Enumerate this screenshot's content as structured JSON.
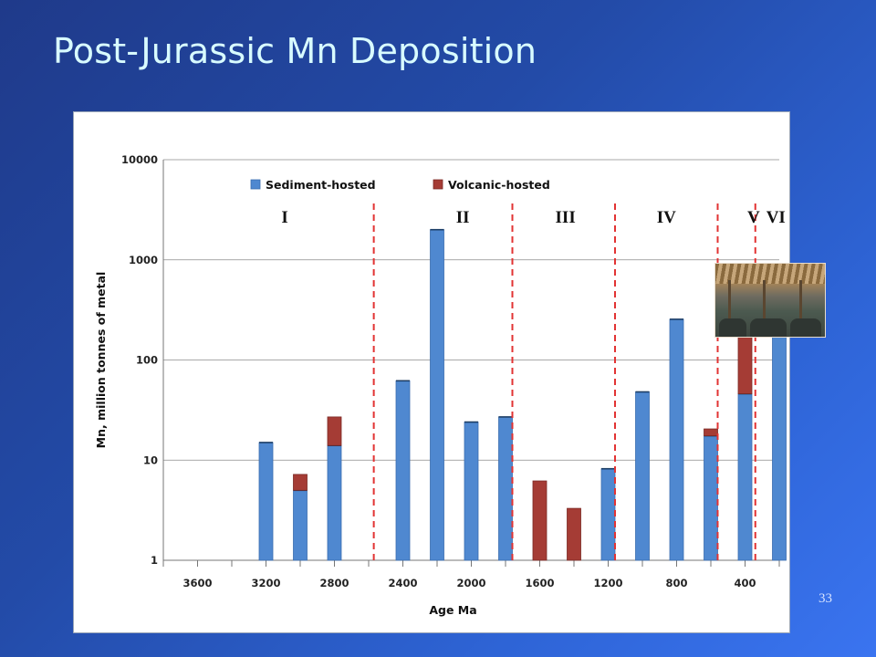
{
  "slide": {
    "title": "Post-Jurassic Mn Deposition",
    "page_number": "33"
  },
  "chart_data": {
    "type": "bar",
    "stacked": true,
    "log_scale_y": true,
    "ylim": [
      1,
      10000
    ],
    "xlim": [
      3800,
      200
    ],
    "xlabel": "Age Ma",
    "ylabel": "Mn, million tonnes of metal",
    "y_ticks": [
      1,
      10,
      100,
      1000,
      10000
    ],
    "y_tick_labels": [
      "1",
      "10",
      "100",
      "1000",
      "10000"
    ],
    "x_ticks": [
      3600,
      3200,
      2800,
      2400,
      2000,
      1600,
      1200,
      800,
      400
    ],
    "x_tick_labels": [
      "3600",
      "3200",
      "2800",
      "2400",
      "2000",
      "1600",
      "1200",
      "800",
      "400"
    ],
    "grid": "horizontal",
    "legend_position": "top-left",
    "colors": {
      "sediment": "#4f88d0",
      "volcanic": "#a53c35",
      "divider": "#e23333"
    },
    "series": [
      {
        "name": "Sediment-hosted"
      },
      {
        "name": "Volcanic-hosted"
      }
    ],
    "bars": [
      {
        "age": 3200,
        "sediment": 15,
        "volcanic": 0
      },
      {
        "age": 3000,
        "sediment": 5,
        "volcanic": 2.2
      },
      {
        "age": 2800,
        "sediment": 14,
        "volcanic": 13
      },
      {
        "age": 2400,
        "sediment": 62,
        "volcanic": 0
      },
      {
        "age": 2200,
        "sediment": 2000,
        "volcanic": 0
      },
      {
        "age": 2000,
        "sediment": 24,
        "volcanic": 0
      },
      {
        "age": 1800,
        "sediment": 27,
        "volcanic": 0
      },
      {
        "age": 1600,
        "sediment": 0,
        "volcanic": 6.2
      },
      {
        "age": 1400,
        "sediment": 0,
        "volcanic": 3.3
      },
      {
        "age": 1200,
        "sediment": 8.2,
        "volcanic": 0
      },
      {
        "age": 1000,
        "sediment": 48,
        "volcanic": 0
      },
      {
        "age": 800,
        "sediment": 255,
        "volcanic": 0
      },
      {
        "age": 600,
        "sediment": 17.5,
        "volcanic": 3
      },
      {
        "age": 400,
        "sediment": 46,
        "volcanic": 130
      },
      {
        "age": 200,
        "sediment": 600,
        "volcanic": 0
      }
    ],
    "divider_ages": [
      2570,
      1760,
      1160,
      560,
      340
    ],
    "eras": [
      {
        "label": "I",
        "age": 3090
      },
      {
        "label": "II",
        "age": 2050
      },
      {
        "label": "III",
        "age": 1450
      },
      {
        "label": "IV",
        "age": 860
      },
      {
        "label": "V",
        "age": 350
      },
      {
        "label": "VI",
        "age": 220
      }
    ]
  }
}
